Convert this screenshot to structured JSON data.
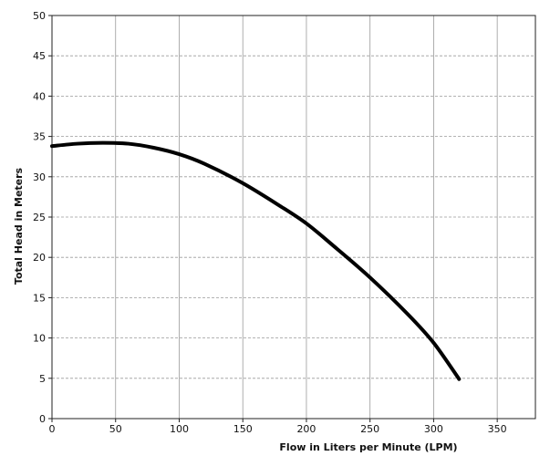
{
  "chart_data": {
    "type": "line",
    "title": "",
    "xlabel": "Flow in Liters per Minute (LPM)",
    "ylabel": "Total Head in Meters",
    "xlim": [
      0,
      380
    ],
    "ylim": [
      0,
      50
    ],
    "x_ticks": [
      0,
      50,
      100,
      150,
      200,
      250,
      300,
      350
    ],
    "y_ticks": [
      0,
      5,
      10,
      15,
      20,
      25,
      30,
      35,
      40,
      45,
      50
    ],
    "grid": {
      "vertical": true,
      "horizontal": true,
      "horizontal_style": "dashed"
    },
    "legend": "none",
    "series": [
      {
        "color": "#000000",
        "x": [
          0,
          20,
          40,
          60,
          80,
          100,
          120,
          150,
          180,
          200,
          220,
          250,
          280,
          300,
          320
        ],
        "y": [
          33.8,
          34.1,
          34.2,
          34.1,
          33.6,
          32.8,
          31.6,
          29.2,
          26.3,
          24.2,
          21.6,
          17.5,
          12.9,
          9.4,
          4.9
        ]
      }
    ]
  }
}
